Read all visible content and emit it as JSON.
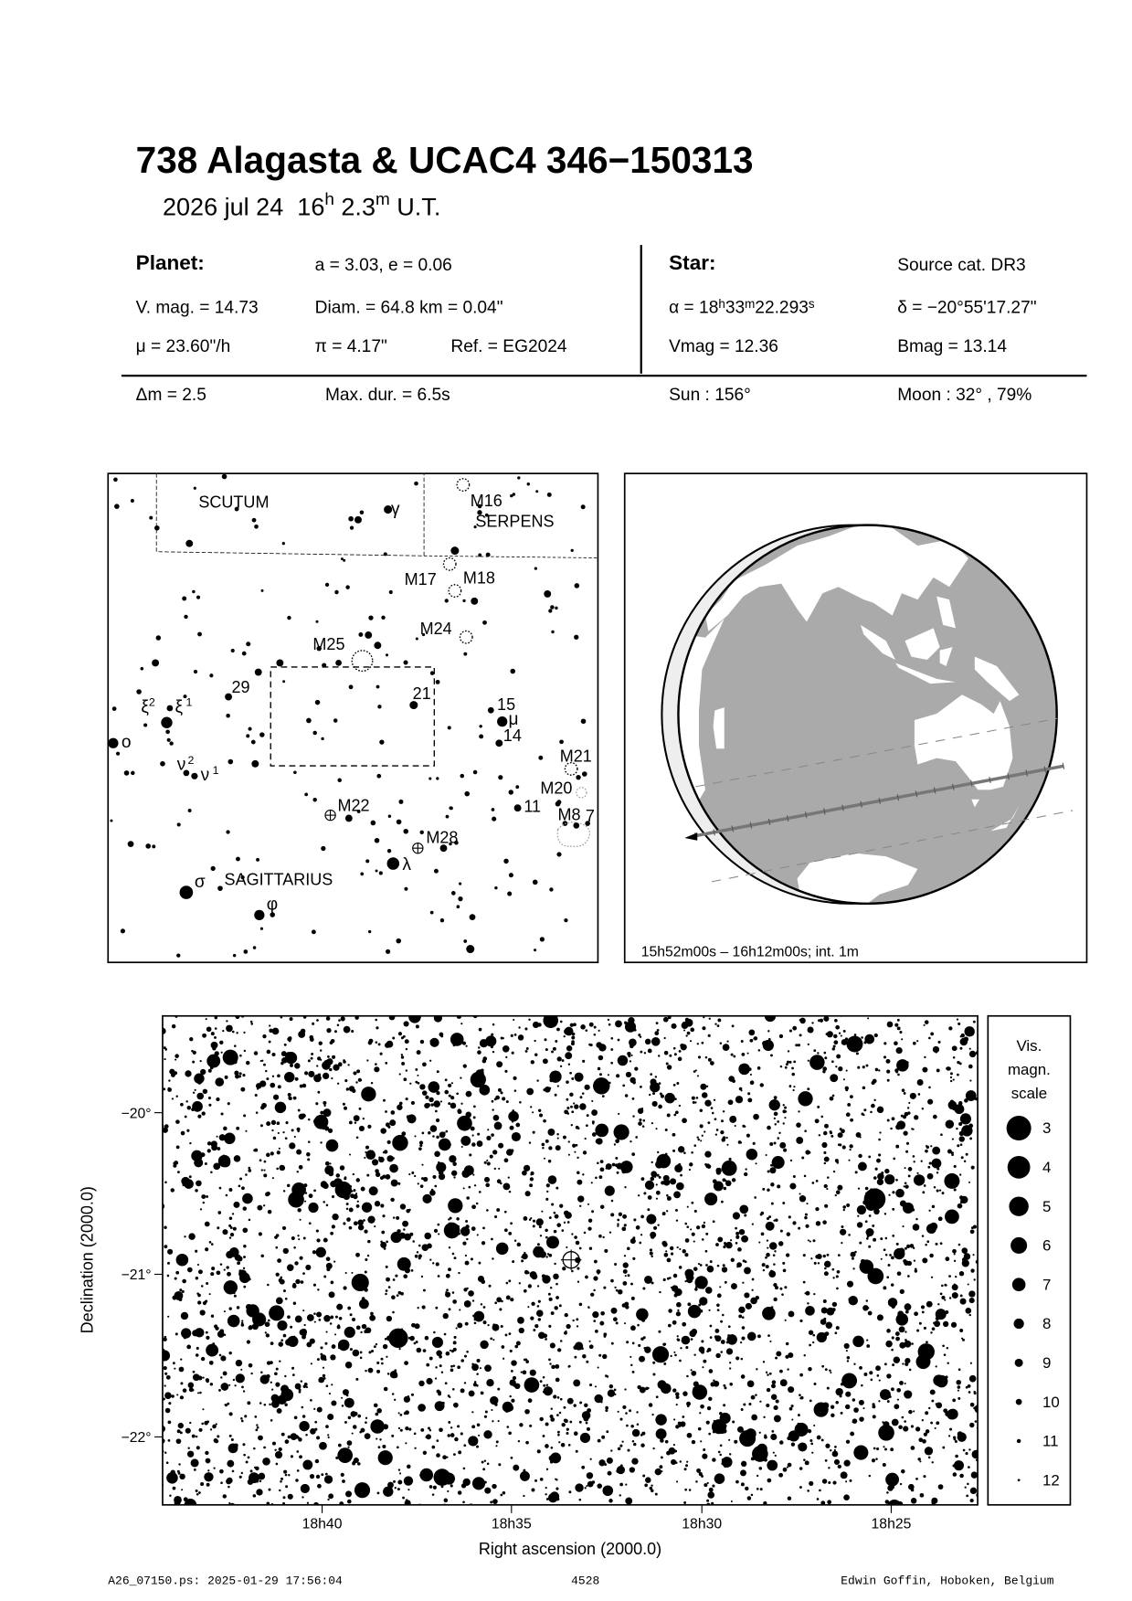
{
  "title": "738 Alagasta  &  UCAC4 346−150313",
  "subtitle": {
    "date": "2026 jul 24",
    "hour": "16",
    "hour_unit": "h",
    "minute": "2.3",
    "minute_unit": "m",
    "timescale": "U.T."
  },
  "planet": {
    "heading": "Planet:",
    "orbit": "a = 3.03, e = 0.06",
    "vmag": "V. mag. = 14.73",
    "diam": "Diam. = 64.8 km = 0.04\"",
    "motion": "μ =  23.60\"/h",
    "parallax": "π =  4.17\"",
    "ref": "Ref. = EG2024"
  },
  "star": {
    "heading": "Star:",
    "source": "Source cat.  DR3",
    "ra_prefix": "α = ",
    "ra_h": "18",
    "ra_m": "33",
    "ra_s": "22.293",
    "dec": "δ = −20°55'17.27\"",
    "vmag": "Vmag = 12.36",
    "bmag": "Bmag = 13.14"
  },
  "event": {
    "dm": "Δm = 2.5",
    "maxdur": "Max. dur. = 6.5s",
    "sun": "Sun : 156°",
    "moon": "Moon :  32° , 79%"
  },
  "finder": {
    "labels": {
      "scutum": "SCUTUM",
      "serpens": "SERPENS",
      "sagittarius": "SAGITTARIUS",
      "gamma": "γ",
      "m16": "M16",
      "m17": "M17",
      "m18": "M18",
      "m24": "M24",
      "m25": "M25",
      "n29": "29",
      "n21": "21",
      "n15": "15",
      "mu": "μ",
      "n14": "14",
      "xi2": "ξ",
      "xi2_sup": "2",
      "xi1": "ξ",
      "xi1_sup": "1",
      "omicron": "o",
      "nu2": "ν",
      "nu2_sup": "2",
      "nu1": "ν",
      "nu1_sup": "1",
      "m21": "M21",
      "m20": "M20",
      "m22": "M22",
      "n11": "11",
      "m8": "M8",
      "n7": "7",
      "m28": "M28",
      "lambda": "λ",
      "sigma": "σ",
      "phi": "φ"
    }
  },
  "globe": {
    "caption": "15h52m00s – 16h12m00s; int.  1m",
    "ocean_color": "#aaaaaa",
    "land_color": "#ffffff"
  },
  "detail_chart": {
    "xlabel": "Right ascension (2000.0)",
    "ylabel": "Declination (2000.0)",
    "xticks": [
      "18h40",
      "18h35",
      "18h30",
      "18h25"
    ],
    "yticks": [
      "−20°",
      "−21°",
      "−22°"
    ],
    "legend": {
      "title1": "Vis.",
      "title2": "magn.",
      "title3": "scale",
      "mags": [
        "3",
        "4",
        "5",
        "6",
        "7",
        "8",
        "9",
        "10",
        "11",
        "12"
      ]
    }
  },
  "footer": {
    "file": "A26_07150.ps: 2025-01-29 17:56:04",
    "number": "4528",
    "author": "Edwin Goffin, Hoboken, Belgium"
  }
}
